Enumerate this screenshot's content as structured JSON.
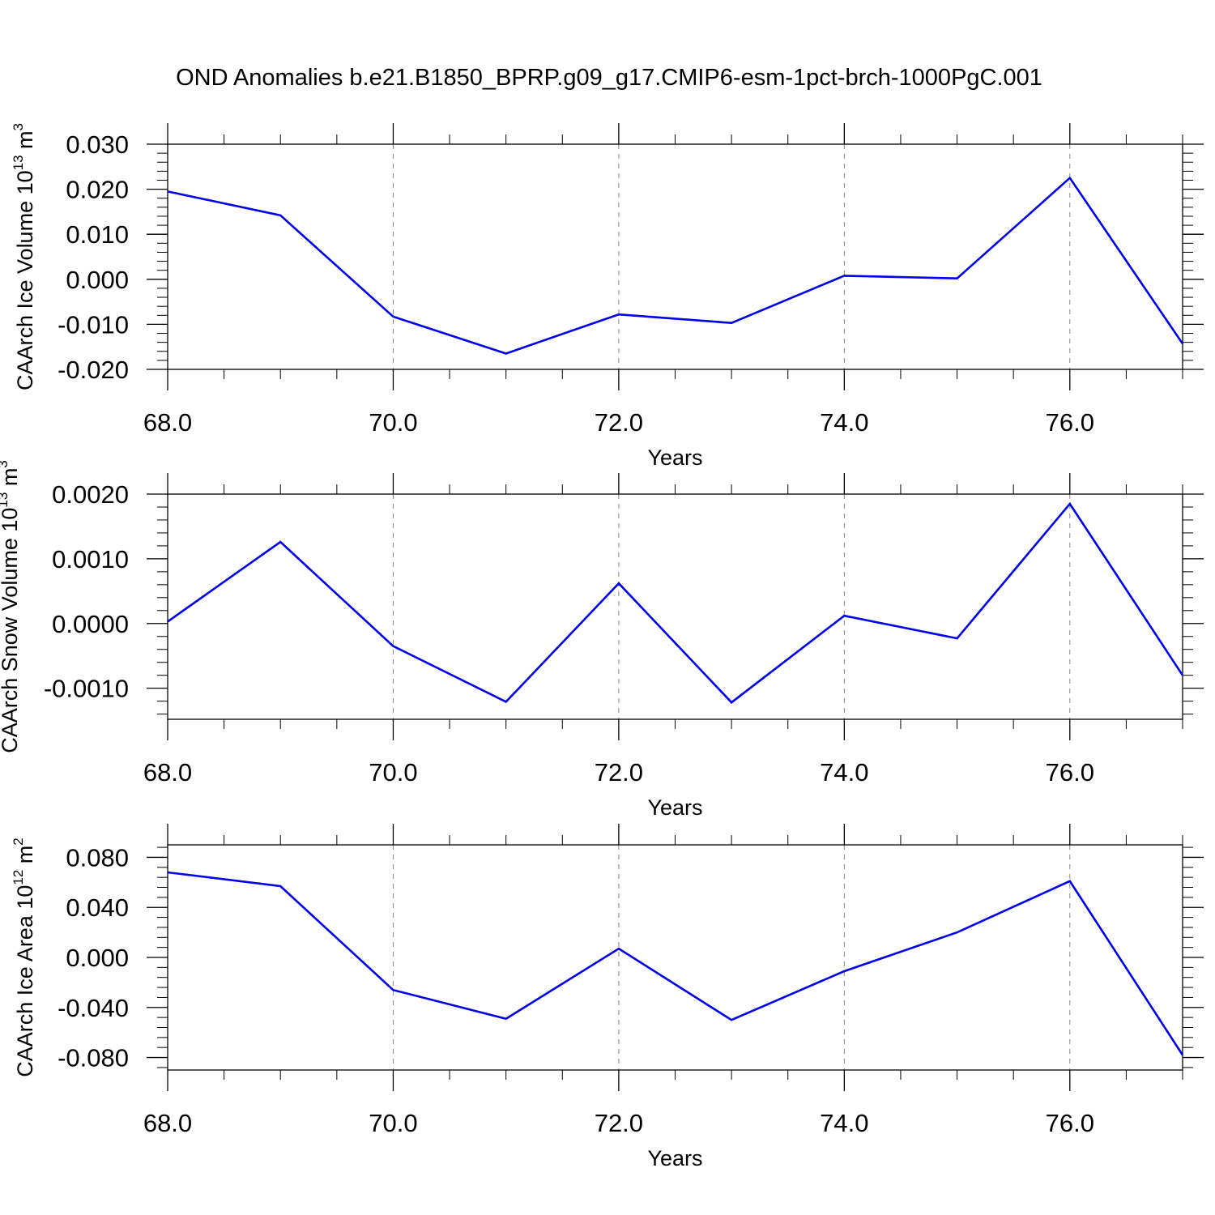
{
  "title": "OND Anomalies b.e21.B1850_BPRP.g09_g17.CMIP6-esm-1pct-brch-1000PgC.001",
  "colors": {
    "line": "#0000ee",
    "axis": "#000000",
    "grid": "#888888"
  },
  "chart_data": [
    {
      "type": "line",
      "title": "",
      "xlabel": "Years",
      "ylabel": {
        "main": "CAArch Ice Volume 10",
        "exp": "13",
        "unit": " m",
        "unit_exp": "3"
      },
      "x": [
        68,
        69,
        70,
        71,
        72,
        73,
        74,
        75,
        76,
        77
      ],
      "series": [
        {
          "values": [
            0.0195,
            0.0142,
            -0.0083,
            -0.0165,
            -0.0078,
            -0.0097,
            0.0008,
            0.0002,
            0.0225,
            -0.0143
          ]
        }
      ],
      "xlim": [
        68,
        77
      ],
      "ylim": [
        -0.02,
        0.03
      ],
      "x_ticks": [
        "68.0",
        "70.0",
        "72.0",
        "74.0",
        "76.0"
      ],
      "x_tick_values": [
        68,
        70,
        72,
        74,
        76
      ],
      "y_ticks": [
        "0.030",
        "0.020",
        "0.010",
        "0.000",
        "-0.010",
        "-0.020"
      ],
      "y_tick_values": [
        0.03,
        0.02,
        0.01,
        0.0,
        -0.01,
        -0.02
      ],
      "y_minor_step": 0.002,
      "vgrid": "dashed at major x ticks"
    },
    {
      "type": "line",
      "title": "",
      "xlabel": "Years",
      "ylabel": {
        "main": "CAArch Snow Volume 10",
        "exp": "13",
        "unit": " m",
        "unit_exp": "3"
      },
      "x": [
        68,
        69,
        70,
        71,
        72,
        73,
        74,
        75,
        76,
        77
      ],
      "series": [
        {
          "values": [
            3e-05,
            0.00126,
            -0.00035,
            -0.00121,
            0.00062,
            -0.00122,
            0.00012,
            -0.00023,
            0.00185,
            -0.0008
          ]
        }
      ],
      "xlim": [
        68,
        77
      ],
      "ylim": [
        -0.00148,
        0.002
      ],
      "x_ticks": [
        "68.0",
        "70.0",
        "72.0",
        "74.0",
        "76.0"
      ],
      "x_tick_values": [
        68,
        70,
        72,
        74,
        76
      ],
      "y_ticks": [
        "0.0020",
        "0.0010",
        "0.0000",
        "-0.0010"
      ],
      "y_tick_values": [
        0.002,
        0.001,
        0.0,
        -0.001
      ],
      "y_minor_step": 0.0002,
      "vgrid": "dashed at major x ticks"
    },
    {
      "type": "line",
      "title": "",
      "xlabel": "Years",
      "ylabel": {
        "main": "CAArch Ice Area 10",
        "exp": "12",
        "unit": " m",
        "unit_exp": "2"
      },
      "x": [
        68,
        69,
        70,
        71,
        72,
        73,
        74,
        75,
        76,
        77
      ],
      "series": [
        {
          "values": [
            0.068,
            0.057,
            -0.026,
            -0.049,
            0.007,
            -0.05,
            -0.011,
            0.02,
            0.061,
            -0.078
          ]
        }
      ],
      "xlim": [
        68,
        77
      ],
      "ylim": [
        -0.09,
        0.09
      ],
      "x_ticks": [
        "68.0",
        "70.0",
        "72.0",
        "74.0",
        "76.0"
      ],
      "x_tick_values": [
        68,
        70,
        72,
        74,
        76
      ],
      "y_ticks": [
        "0.080",
        "0.040",
        "0.000",
        "-0.040",
        "-0.080"
      ],
      "y_tick_values": [
        0.08,
        0.04,
        0.0,
        -0.04,
        -0.08
      ],
      "y_minor_step": 0.008,
      "vgrid": "dashed at major x ticks"
    }
  ]
}
